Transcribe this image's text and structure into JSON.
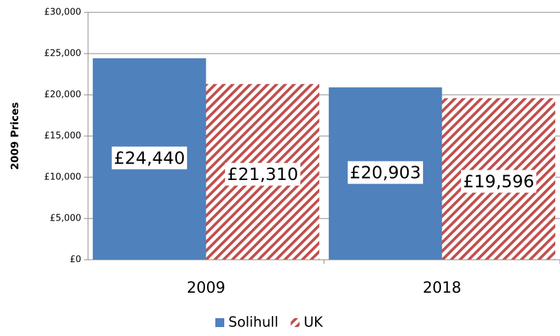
{
  "chart_data": {
    "type": "bar",
    "y_label": "2009 Prices",
    "categories": [
      "2009",
      "2018"
    ],
    "series": [
      {
        "name": "Solihull",
        "color": "#4f81bd",
        "pattern": "solid",
        "values": [
          24440,
          20903
        ],
        "value_labels": [
          "£24,440",
          "£20,903"
        ]
      },
      {
        "name": "UK",
        "color": "#c0504d",
        "pattern": "hatch",
        "values": [
          21310,
          19596
        ],
        "value_labels": [
          "£21,310",
          "£19,596"
        ]
      }
    ],
    "ylim": [
      0,
      30000
    ],
    "yticks": [
      {
        "value": 0,
        "label": "£0"
      },
      {
        "value": 5000,
        "label": "£5,000"
      },
      {
        "value": 10000,
        "label": "£10,000"
      },
      {
        "value": 15000,
        "label": "£15,000"
      },
      {
        "value": 20000,
        "label": "£20,000"
      },
      {
        "value": 25000,
        "label": "£25,000"
      },
      {
        "value": 30000,
        "label": "£30,000"
      }
    ],
    "grid": true,
    "legend": "bottom"
  }
}
